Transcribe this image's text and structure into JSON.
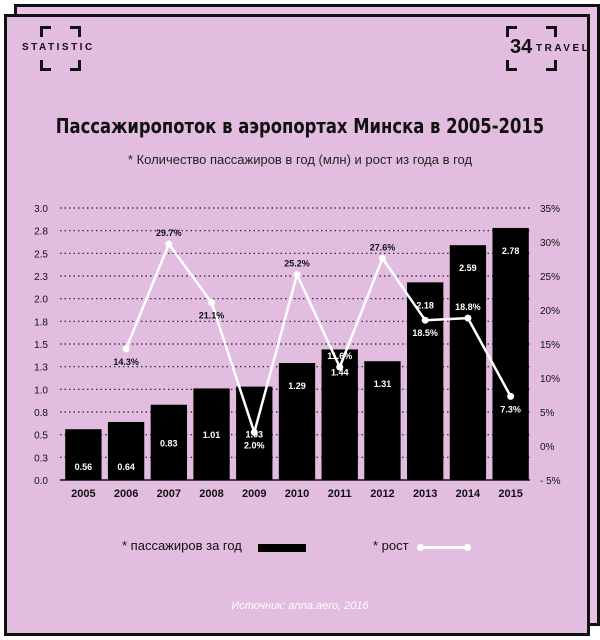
{
  "brand": {
    "left_text": "STATISTIC",
    "right_number": "34",
    "right_text": "TRAVEL"
  },
  "title": "Пассажиропоток в аэропортах Минска в 2005-2015",
  "subtitle": "* Количество пассажиров в год (млн) и рост из года в год",
  "legend": {
    "passengers": "* пассажиров за год",
    "growth": "* рост"
  },
  "source": "Источник: anna.aero, 2016",
  "colors": {
    "background": "#e2bde0",
    "bars": "#000000",
    "line": "#ffffff"
  },
  "chart_data": {
    "type": "bar",
    "categories": [
      "2005",
      "2006",
      "2007",
      "2008",
      "2009",
      "2010",
      "2011",
      "2012",
      "2013",
      "2014",
      "2015"
    ],
    "series": [
      {
        "name": "пассажиров за год",
        "type": "bar",
        "axis": "left",
        "values": [
          0.56,
          0.64,
          0.83,
          1.01,
          1.03,
          1.29,
          1.44,
          1.31,
          2.18,
          2.59,
          2.78
        ],
        "labels": [
          "0.56",
          "0.64",
          "0.83",
          "1.01",
          "1.03",
          "1.29",
          "1.44",
          "1.31",
          "2.18",
          "2.59",
          "2.78"
        ]
      },
      {
        "name": "рост",
        "type": "line",
        "axis": "right",
        "values": [
          null,
          14.3,
          29.7,
          21.1,
          2.0,
          25.2,
          11.6,
          27.6,
          18.5,
          18.8,
          7.3
        ],
        "labels": [
          null,
          "14.3%",
          "29.7%",
          "21.1%",
          "2.0%",
          "25.2%",
          "11.6%",
          "27.6%",
          "18.5%",
          "18.8%",
          "7.3%"
        ]
      }
    ],
    "left_ticks": [
      "0.0",
      "0.3",
      "0.5",
      "0.8",
      "1.0",
      "1.3",
      "1.5",
      "1.8",
      "2.0",
      "2.3",
      "2.5",
      "2.8",
      "3.0"
    ],
    "right_ticks": [
      "35%",
      "30%",
      "25%",
      "20%",
      "15%",
      "10%",
      "5%",
      "0%",
      "- 5%"
    ],
    "ylim": [
      0,
      3
    ],
    "y2lim": [
      -5,
      35
    ],
    "grid": "dotted horizontal"
  }
}
